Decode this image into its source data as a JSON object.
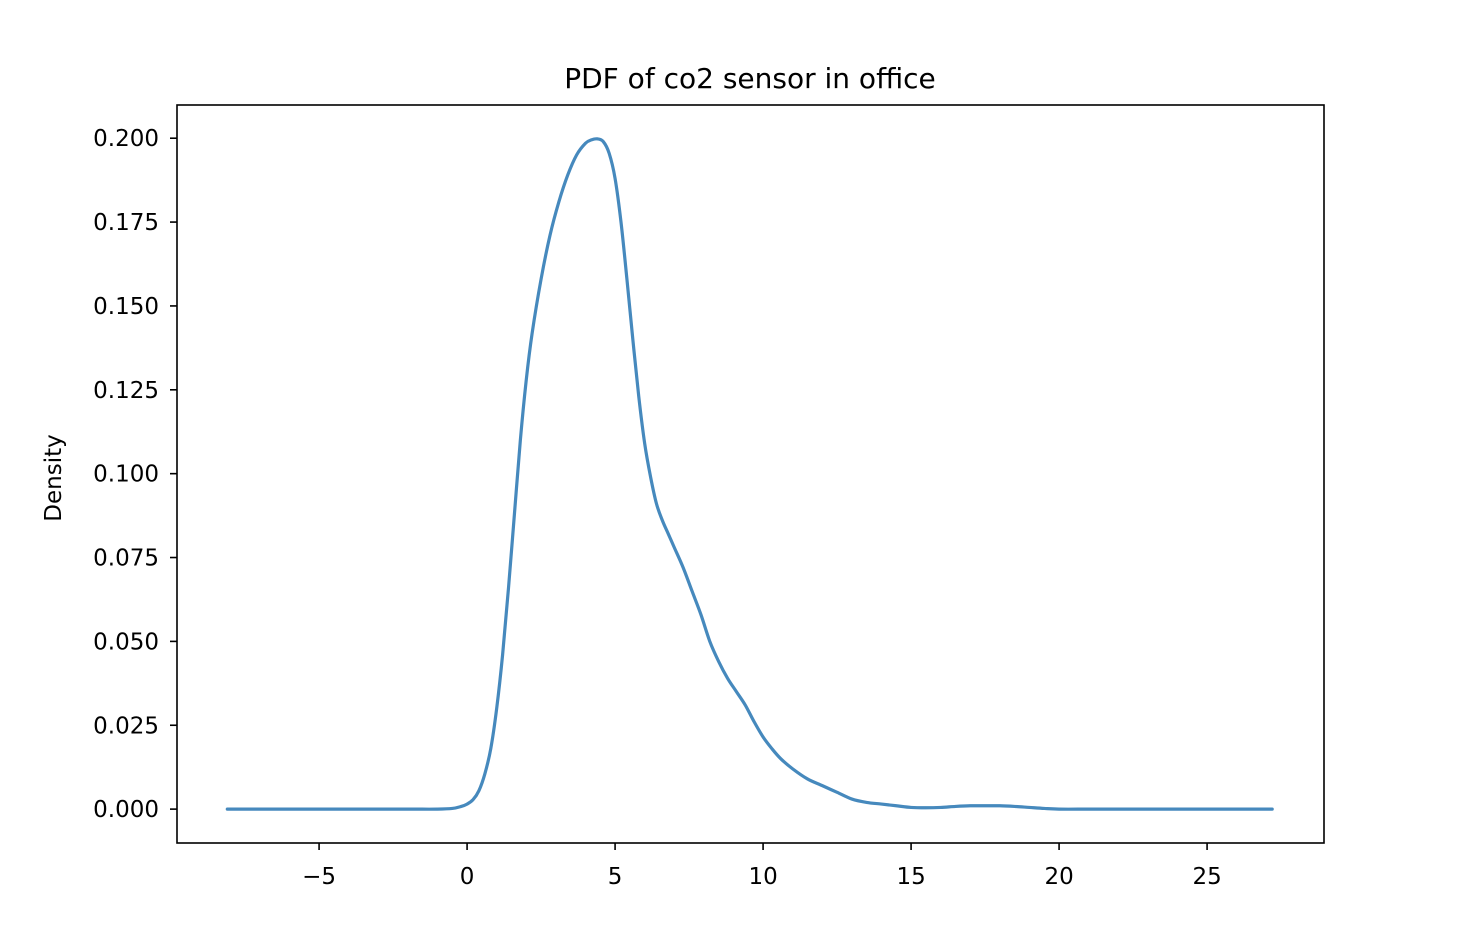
{
  "chart_data": {
    "type": "line",
    "title": "PDF of co2 sensor in office",
    "xlabel": "",
    "ylabel": "Density",
    "xlim": [
      -9.8,
      28.95
    ],
    "ylim": [
      -0.0101,
      0.2099
    ],
    "xticks": [
      -5,
      0,
      5,
      10,
      15,
      20,
      25
    ],
    "xtick_labels": [
      "−5",
      "0",
      "5",
      "10",
      "15",
      "20",
      "25"
    ],
    "yticks": [
      0.0,
      0.025,
      0.05,
      0.075,
      0.1,
      0.125,
      0.15,
      0.175,
      0.2
    ],
    "ytick_labels": [
      "0.000",
      "0.025",
      "0.050",
      "0.075",
      "0.100",
      "0.125",
      "0.150",
      "0.175",
      "0.200"
    ],
    "grid": false,
    "line_color": "#4689bd",
    "series": [
      {
        "x": [
          -8.1,
          -6,
          -4,
          -2,
          -1,
          -0.5,
          -0.2,
          0,
          0.2,
          0.4,
          0.6,
          0.8,
          1.0,
          1.2,
          1.4,
          1.6,
          1.8,
          2.0,
          2.2,
          2.5,
          2.8,
          3.1,
          3.4,
          3.7,
          4.0,
          4.2,
          4.4,
          4.6,
          4.8,
          5.0,
          5.2,
          5.4,
          5.6,
          5.8,
          6.0,
          6.2,
          6.4,
          6.6,
          6.8,
          7.0,
          7.3,
          7.6,
          7.9,
          8.2,
          8.5,
          8.8,
          9.1,
          9.4,
          9.7,
          10.0,
          10.3,
          10.6,
          11.0,
          11.5,
          12.0,
          12.5,
          13.0,
          13.5,
          14.0,
          14.5,
          15.0,
          15.5,
          16.0,
          16.5,
          17.0,
          17.5,
          18.0,
          18.5,
          19.0,
          19.5,
          20.0,
          21.0,
          22.0,
          23.0,
          24.0,
          25.0,
          26.0,
          27.2
        ],
        "y": [
          0.0,
          0.0,
          0.0,
          0.0,
          0.0,
          0.0002,
          0.0008,
          0.0015,
          0.0028,
          0.0055,
          0.0105,
          0.018,
          0.03,
          0.046,
          0.066,
          0.088,
          0.11,
          0.128,
          0.142,
          0.158,
          0.171,
          0.181,
          0.189,
          0.195,
          0.1985,
          0.1995,
          0.1998,
          0.199,
          0.1955,
          0.188,
          0.175,
          0.158,
          0.14,
          0.123,
          0.109,
          0.099,
          0.091,
          0.086,
          0.082,
          0.078,
          0.072,
          0.065,
          0.058,
          0.05,
          0.044,
          0.039,
          0.035,
          0.031,
          0.026,
          0.0215,
          0.018,
          0.015,
          0.012,
          0.009,
          0.007,
          0.005,
          0.003,
          0.002,
          0.0015,
          0.001,
          0.0005,
          0.0004,
          0.0005,
          0.0008,
          0.001,
          0.001,
          0.001,
          0.0008,
          0.0005,
          0.0002,
          0.0,
          0.0,
          0.0,
          0.0,
          0.0,
          0.0,
          0.0,
          0.0
        ]
      }
    ]
  }
}
